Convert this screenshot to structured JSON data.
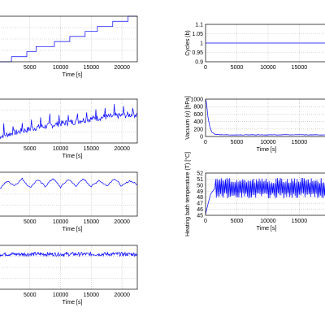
{
  "figure": {
    "line_color": "#0000ff",
    "grid_color": "#b5b5b5",
    "axis_color": "#000000"
  },
  "chart_data": [
    {
      "id": "left1",
      "type": "line",
      "xlabel": "Time [s]",
      "ylabel": "",
      "x_ticks": [
        "5000",
        "10000",
        "15000",
        "20000"
      ],
      "y_ticks": [],
      "xlim": [
        0,
        22500
      ],
      "ylim": [
        0,
        9
      ],
      "grid": true,
      "series": [
        {
          "x": [
            0,
            2000,
            2000,
            4500,
            4500,
            6000,
            6000,
            9000,
            9000,
            11500,
            11500,
            14000,
            14000,
            16000,
            16000,
            18500,
            18500,
            21000,
            21000,
            22500
          ],
          "y": [
            0,
            0,
            1,
            1,
            2,
            2,
            3,
            3,
            4,
            4,
            5,
            5,
            6,
            6,
            7,
            7,
            8,
            8,
            9,
            9
          ]
        }
      ]
    },
    {
      "id": "left2",
      "type": "line",
      "xlabel": "Time [s]",
      "ylabel": "",
      "x_ticks": [
        "5000",
        "10000",
        "15000",
        "20000"
      ],
      "y_ticks": [],
      "xlim": [
        0,
        22500
      ],
      "ylim": [
        0,
        10
      ],
      "grid": true,
      "series": [
        {
          "x": [
            0,
            1500,
            3000,
            4500,
            6000,
            7500,
            9000,
            10500,
            12000,
            13500,
            15000,
            16500,
            18000,
            19500,
            21000,
            22500
          ],
          "y": [
            1.5,
            2.0,
            2.5,
            3.0,
            3.5,
            3.8,
            4.2,
            4.5,
            4.8,
            5.2,
            5.5,
            5.8,
            6.0,
            6.2,
            6.4,
            6.5
          ]
        }
      ]
    },
    {
      "id": "left3",
      "type": "line",
      "xlabel": "Time [s]",
      "ylabel": "",
      "x_ticks": [
        "5000",
        "10000",
        "15000",
        "20000"
      ],
      "y_ticks": [],
      "xlim": [
        0,
        22500
      ],
      "ylim": [
        0,
        10
      ],
      "grid": true,
      "series": [
        {
          "x": [
            0,
            1250,
            2500,
            3750,
            5000,
            6250,
            7500,
            8750,
            10000,
            11250,
            12500,
            13750,
            15000,
            16250,
            17500,
            18750,
            20000,
            21250,
            22500
          ],
          "y": [
            6.0,
            8.0,
            7.0,
            8.5,
            6.5,
            8.3,
            6.8,
            8.6,
            6.6,
            8.4,
            6.9,
            8.5,
            6.7,
            8.2,
            6.9,
            8.6,
            6.8,
            8.1,
            7.2
          ]
        }
      ]
    },
    {
      "id": "left4",
      "type": "line",
      "xlabel": "Time [s]",
      "ylabel": "",
      "x_ticks": [
        "5000",
        "10000",
        "15000",
        "20000"
      ],
      "y_ticks": [],
      "xlim": [
        0,
        22500
      ],
      "ylim": [
        0,
        10
      ],
      "grid": true,
      "series": [
        {
          "x": [
            0,
            22500
          ],
          "y": [
            8.0,
            8.0
          ]
        }
      ]
    },
    {
      "id": "right1",
      "type": "line",
      "xlabel": "",
      "ylabel": "Cycles (b)",
      "x_ticks": [
        "0",
        "5000",
        "10000",
        "15000"
      ],
      "y_ticks": [
        "0.9",
        "0.95",
        "1",
        "1.05",
        "1.1"
      ],
      "xlim": [
        0,
        19500
      ],
      "ylim": [
        0.9,
        1.1
      ],
      "grid": true,
      "series": [
        {
          "x": [
            0,
            19500
          ],
          "y": [
            1,
            1
          ]
        }
      ]
    },
    {
      "id": "right2",
      "type": "line",
      "xlabel": "Time [s]",
      "ylabel": "Vacuum (v) [hPa]",
      "x_ticks": [
        "0",
        "5000",
        "10000",
        "15000"
      ],
      "y_ticks": [
        "0",
        "200",
        "400",
        "600",
        "800",
        "1000"
      ],
      "xlim": [
        0,
        19500
      ],
      "ylim": [
        0,
        1000
      ],
      "grid": true,
      "series": [
        {
          "x": [
            0,
            150,
            400,
            700,
            1000,
            1500,
            2500,
            19500
          ],
          "y": [
            1000,
            900,
            500,
            250,
            120,
            60,
            45,
            45
          ]
        }
      ]
    },
    {
      "id": "right3",
      "type": "line",
      "xlabel": "Time [s]",
      "ylabel": "Heating bath temperature (T) [°C]",
      "x_ticks": [
        "0",
        "5000",
        "10000",
        "15000"
      ],
      "y_ticks": [
        "45",
        "46",
        "47",
        "48",
        "49",
        "50",
        "51",
        "52"
      ],
      "xlim": [
        0,
        19500
      ],
      "ylim": [
        45,
        52
      ],
      "grid": true,
      "series": [
        {
          "x": [
            0,
            300,
            800,
            1500
          ],
          "y": [
            45.2,
            46.5,
            48.5,
            49.5
          ]
        }
      ]
    }
  ]
}
